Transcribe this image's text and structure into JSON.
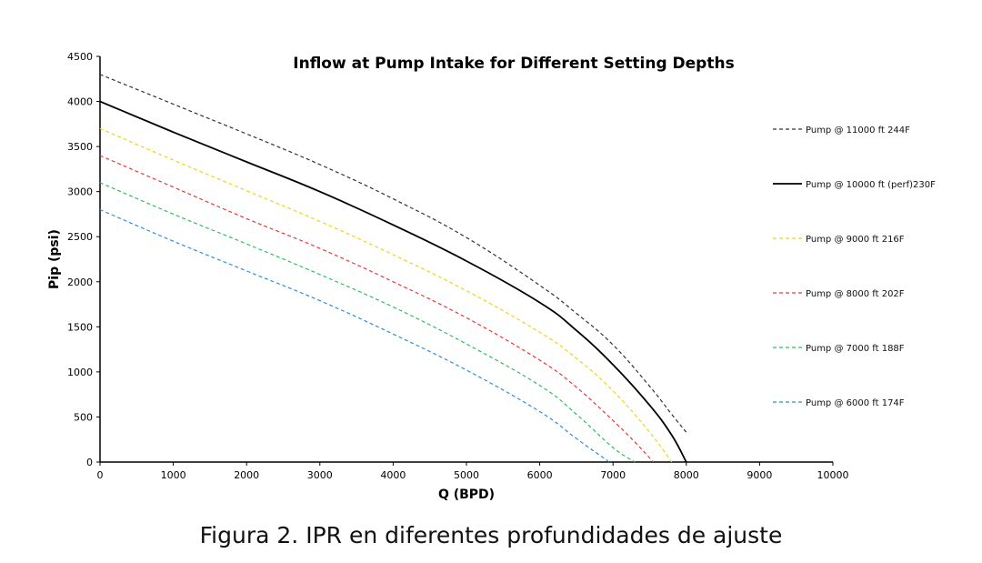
{
  "chart_data": {
    "type": "line",
    "title": "Inflow at Pump Intake for Different Setting Depths",
    "xlabel": "Q (BPD)",
    "ylabel": "Pip (psi)",
    "xlim": [
      0,
      10000
    ],
    "ylim": [
      0,
      4500
    ],
    "x_ticks": [
      "0",
      "1000",
      "2000",
      "3000",
      "4000",
      "5000",
      "6000",
      "7000",
      "8000",
      "9000",
      "10000"
    ],
    "y_ticks": [
      "0",
      "500",
      "1000",
      "1500",
      "2000",
      "2500",
      "3000",
      "3500",
      "4000",
      "4500"
    ],
    "grid": false,
    "legend_position": "right",
    "series": [
      {
        "name": "Pump @ 11000 ft 244F",
        "color": "#333333",
        "style": "dashed",
        "x": [
          0,
          1000,
          2000,
          3000,
          4000,
          5000,
          6000,
          6500,
          7000,
          7500,
          7800,
          8000
        ],
        "y": [
          4300,
          3970,
          3640,
          3300,
          2920,
          2490,
          1960,
          1650,
          1300,
          840,
          530,
          330
        ]
      },
      {
        "name": "Pump @ 10000 ft (perf)230F",
        "color": "#000000",
        "style": "solid",
        "x": [
          0,
          1000,
          2000,
          3000,
          4000,
          5000,
          6000,
          6500,
          7000,
          7500,
          7800,
          8000
        ],
        "y": [
          4000,
          3660,
          3330,
          3000,
          2630,
          2230,
          1770,
          1460,
          1080,
          630,
          300,
          0
        ]
      },
      {
        "name": "Pump @ 9000 ft 216F",
        "color": "#f2d21b",
        "style": "dashed",
        "x": [
          0,
          1000,
          2000,
          3000,
          4000,
          5000,
          6000,
          6500,
          7000,
          7500,
          7800
        ],
        "y": [
          3700,
          3350,
          3010,
          2670,
          2300,
          1900,
          1440,
          1150,
          790,
          330,
          0
        ]
      },
      {
        "name": "Pump @ 8000 ft 202F",
        "color": "#e8393a",
        "style": "dashed",
        "x": [
          0,
          1000,
          2000,
          3000,
          4000,
          5000,
          6000,
          6500,
          7000,
          7300,
          7550
        ],
        "y": [
          3400,
          3050,
          2700,
          2370,
          2000,
          1600,
          1130,
          830,
          460,
          220,
          0
        ]
      },
      {
        "name": "Pump @ 7000 ft 188F",
        "color": "#2ebf5a",
        "style": "dashed",
        "x": [
          0,
          1000,
          2000,
          3000,
          4000,
          5000,
          6000,
          6500,
          7000,
          7300
        ],
        "y": [
          3100,
          2750,
          2420,
          2080,
          1720,
          1310,
          850,
          530,
          160,
          0
        ]
      },
      {
        "name": "Pump @ 6000 ft 174F",
        "color": "#2b8fe0",
        "style": "dashed",
        "x": [
          0,
          1000,
          2000,
          3000,
          4000,
          5000,
          6000,
          6500,
          6950
        ],
        "y": [
          2800,
          2450,
          2120,
          1790,
          1420,
          1020,
          560,
          260,
          0
        ]
      }
    ]
  },
  "caption": "Figura 2. IPR en diferentes profundidades de ajuste"
}
